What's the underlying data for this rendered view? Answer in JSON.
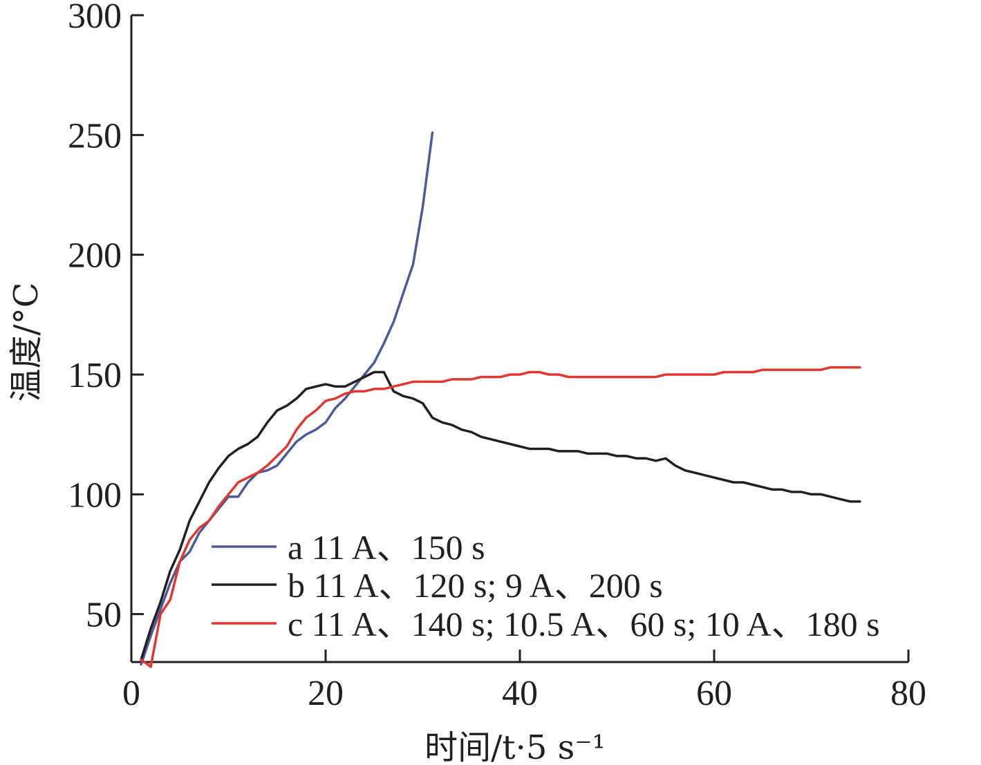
{
  "chart_data": {
    "type": "line",
    "title": "",
    "xlabel": "时间/t·5 s⁻¹",
    "ylabel": "温度/°C",
    "xlim": [
      0,
      80
    ],
    "ylim": [
      30,
      300
    ],
    "x_ticks": [
      "0",
      "20",
      "40",
      "60",
      "80"
    ],
    "y_ticks": [
      "50",
      "100",
      "150",
      "200",
      "250",
      "300"
    ],
    "grid": false,
    "legend_position": "bottom-right",
    "series": [
      {
        "name": "a 11 A、150 s",
        "color": "#4a5a9a",
        "x": [
          1,
          2,
          3,
          4,
          5,
          6,
          7,
          8,
          9,
          10,
          11,
          12,
          13,
          14,
          15,
          16,
          17,
          18,
          19,
          20,
          21,
          22,
          23,
          24,
          25,
          26,
          27,
          28,
          29,
          30,
          31
        ],
        "y": [
          29,
          41,
          52,
          63,
          72,
          76,
          84,
          89,
          94,
          99,
          99,
          105,
          109,
          110,
          112,
          117,
          122,
          125,
          127,
          130,
          136,
          140,
          145,
          150,
          155,
          163,
          172,
          184,
          196,
          220,
          251
        ]
      },
      {
        "name": "b 11 A、120 s; 9 A、200 s",
        "color": "#231f20",
        "x": [
          1,
          2,
          3,
          4,
          5,
          6,
          7,
          8,
          9,
          10,
          11,
          12,
          13,
          14,
          15,
          16,
          17,
          18,
          19,
          20,
          21,
          22,
          23,
          24,
          25,
          26,
          27,
          28,
          29,
          30,
          31,
          32,
          33,
          34,
          35,
          36,
          37,
          38,
          39,
          40,
          41,
          42,
          43,
          44,
          45,
          46,
          47,
          48,
          49,
          50,
          51,
          52,
          53,
          54,
          55,
          56,
          57,
          58,
          59,
          60,
          61,
          62,
          63,
          64,
          65,
          66,
          67,
          68,
          69,
          70,
          71,
          72,
          73,
          74,
          75
        ],
        "y": [
          31,
          44,
          55,
          68,
          77,
          89,
          97,
          105,
          111,
          116,
          119,
          121,
          124,
          130,
          135,
          137,
          140,
          144,
          145,
          146,
          145,
          145,
          147,
          149,
          151,
          151,
          143,
          141,
          140,
          138,
          132,
          130,
          129,
          127,
          126,
          124,
          123,
          122,
          121,
          120,
          119,
          119,
          119,
          118,
          118,
          118,
          117,
          117,
          117,
          116,
          116,
          115,
          115,
          114,
          115,
          112,
          110,
          109,
          108,
          107,
          106,
          105,
          105,
          104,
          103,
          102,
          102,
          101,
          101,
          100,
          100,
          99,
          98,
          97,
          97
        ]
      },
      {
        "name": "c 11 A、140 s; 10.5 A、60 s; 10 A、180 s",
        "color": "#e3362f",
        "x": [
          1,
          2,
          3,
          4,
          5,
          6,
          7,
          8,
          9,
          10,
          11,
          12,
          13,
          14,
          15,
          16,
          17,
          18,
          19,
          20,
          21,
          22,
          23,
          24,
          25,
          26,
          27,
          28,
          29,
          30,
          31,
          32,
          33,
          34,
          35,
          36,
          37,
          38,
          39,
          40,
          41,
          42,
          43,
          44,
          45,
          46,
          47,
          48,
          49,
          50,
          51,
          52,
          53,
          54,
          55,
          56,
          57,
          58,
          59,
          60,
          61,
          62,
          63,
          64,
          65,
          66,
          67,
          68,
          69,
          70,
          71,
          72,
          73,
          74,
          75
        ],
        "y": [
          31,
          28,
          50,
          56,
          72,
          81,
          86,
          89,
          95,
          100,
          105,
          107,
          109,
          112,
          116,
          120,
          127,
          132,
          135,
          139,
          140,
          142,
          143,
          143,
          144,
          144,
          145,
          146,
          147,
          147,
          147,
          147,
          148,
          148,
          148,
          149,
          149,
          149,
          150,
          150,
          151,
          151,
          150,
          150,
          149,
          149,
          149,
          149,
          149,
          149,
          149,
          149,
          149,
          149,
          150,
          150,
          150,
          150,
          150,
          150,
          151,
          151,
          151,
          151,
          152,
          152,
          152,
          152,
          152,
          152,
          152,
          153,
          153,
          153,
          153
        ]
      }
    ]
  }
}
